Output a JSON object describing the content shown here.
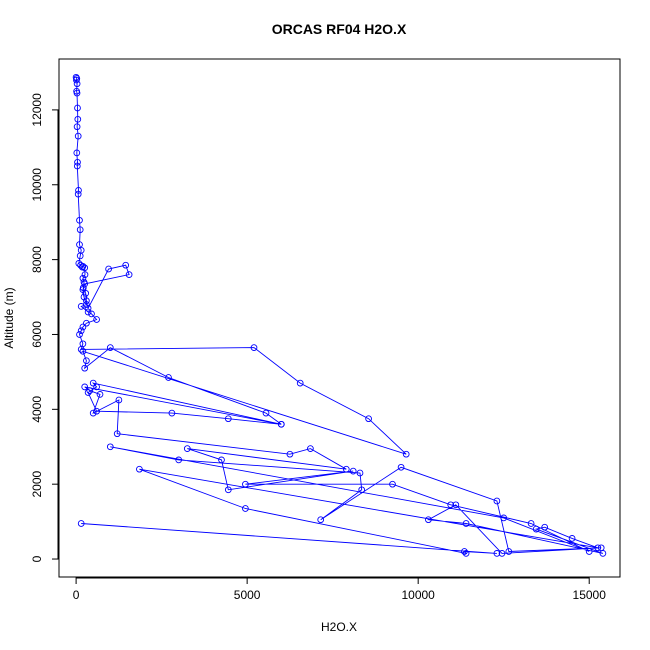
{
  "chart_data": {
    "type": "scatter",
    "title": "ORCAS RF04 H2O.X",
    "xlabel": "H2O.X",
    "ylabel": "Altitude (m)",
    "xlim": [
      -500,
      15900
    ],
    "ylim": [
      -480,
      13360
    ],
    "x_ticks": [
      0,
      5000,
      10000,
      15000
    ],
    "x_tick_labels": [
      "0",
      "5000",
      "10000",
      "15000"
    ],
    "y_ticks": [
      0,
      2000,
      4000,
      6000,
      8000,
      10000,
      12000
    ],
    "y_tick_labels": [
      "0",
      "2000",
      "4000",
      "6000",
      "8000",
      "10000",
      "12000"
    ],
    "grid": false,
    "series": [
      {
        "color": "#0000ff",
        "marker": "open-circle",
        "line": true,
        "x": [
          0,
          20,
          10,
          30,
          15,
          25,
          40,
          50,
          30,
          60,
          20,
          40,
          35,
          70,
          60,
          100,
          120,
          100,
          150,
          120,
          80,
          130,
          180,
          200,
          250,
          260,
          200,
          230,
          210,
          280,
          300,
          350,
          950,
          1450,
          1550,
          250,
          200,
          230,
          300,
          150,
          350,
          450,
          600,
          300,
          200,
          150,
          100,
          200,
          150,
          5200,
          6550,
          8550,
          9650,
          200,
          300,
          250,
          1000,
          2700,
          5550,
          6000,
          500,
          600,
          350,
          600,
          2800,
          4450,
          6000,
          250,
          400,
          700,
          500,
          1250,
          1200,
          6250,
          6850,
          7900,
          3250,
          4250,
          4450,
          8100,
          4950,
          9250,
          10950,
          13300,
          15000,
          12500,
          1000,
          3000,
          8300,
          8350,
          7150,
          9500,
          12300,
          12650,
          15350,
          12450,
          11100,
          10300,
          11400,
          15400,
          13450,
          13700,
          14500,
          15250,
          1850,
          4950,
          11400,
          11350,
          12300,
          150
        ],
        "y": [
          12870,
          12840,
          12800,
          12700,
          12500,
          12450,
          12050,
          11750,
          11550,
          11300,
          10850,
          10600,
          10500,
          9850,
          9750,
          9050,
          8800,
          8400,
          8250,
          8100,
          7900,
          7850,
          7800,
          7820,
          7780,
          7600,
          7500,
          7400,
          7250,
          7100,
          6900,
          6700,
          7750,
          7850,
          7600,
          7350,
          7200,
          7000,
          6800,
          6750,
          6600,
          6550,
          6400,
          6300,
          6200,
          6100,
          6000,
          5750,
          5600,
          5650,
          4700,
          3750,
          2800,
          5550,
          5300,
          5100,
          5650,
          4850,
          3900,
          3600,
          4700,
          4600,
          4450,
          3950,
          3900,
          3750,
          3600,
          4600,
          4500,
          4400,
          3900,
          4250,
          3350,
          2800,
          2950,
          2400,
          2950,
          2650,
          1850,
          2350,
          2000,
          2000,
          1450,
          950,
          200,
          1100,
          3000,
          2650,
          2300,
          1850,
          1050,
          2450,
          1550,
          200,
          300,
          150,
          1450,
          1050,
          950,
          150,
          800,
          850,
          550,
          300,
          2400,
          1350,
          150,
          200,
          150,
          950
        ]
      }
    ]
  }
}
